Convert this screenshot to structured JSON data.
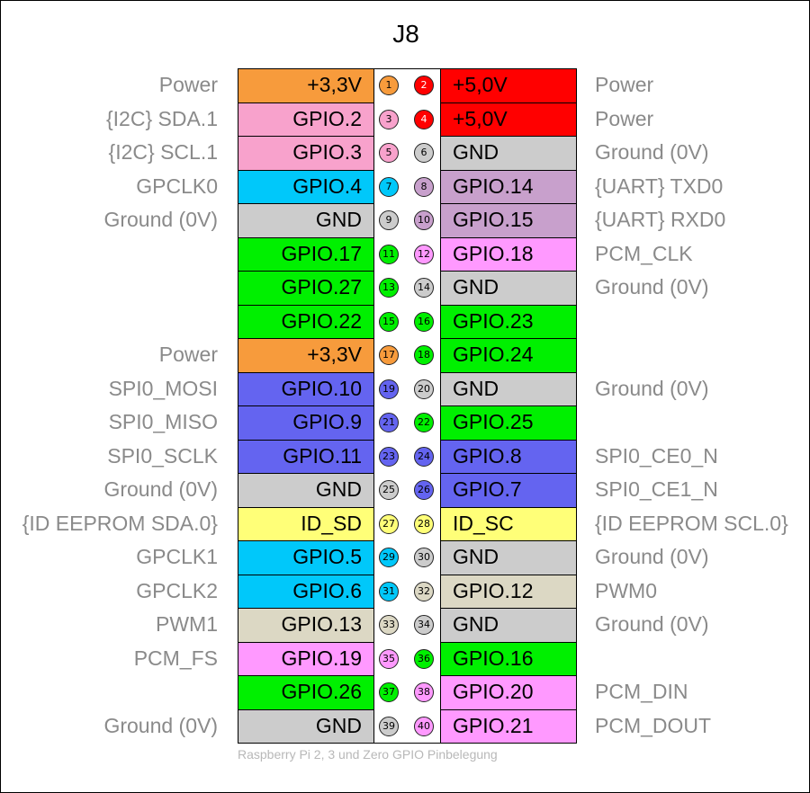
{
  "title": "J8",
  "caption": "Raspberry Pi 2, 3 und Zero GPIO Pinbelegung",
  "colors": {
    "orange": "#F79B3C",
    "red": "#FF0000",
    "pink": "#F8A2CC",
    "grey": "#CCCCCC",
    "cyan": "#00C8FA",
    "mauve": "#C8A0CC",
    "green": "#00F000",
    "magenta": "#FF99FF",
    "blue": "#6464F0",
    "yellow": "#FFFF78",
    "tan": "#DCD8C4"
  },
  "rows": [
    {
      "left_desc": "Power",
      "left_label": "+3,3V",
      "left_color": "orange",
      "left_pin": "1",
      "right_pin": "2",
      "right_label": "+5,0V",
      "right_color": "red",
      "right_desc": "Power"
    },
    {
      "left_desc": "{I2C} SDA.1",
      "left_label": "GPIO.2",
      "left_color": "pink",
      "left_pin": "3",
      "right_pin": "4",
      "right_label": "+5,0V",
      "right_color": "red",
      "right_desc": "Power"
    },
    {
      "left_desc": "{I2C} SCL.1",
      "left_label": "GPIO.3",
      "left_color": "pink",
      "left_pin": "5",
      "right_pin": "6",
      "right_label": "GND",
      "right_color": "grey",
      "right_desc": "Ground (0V)"
    },
    {
      "left_desc": "GPCLK0",
      "left_label": "GPIO.4",
      "left_color": "cyan",
      "left_pin": "7",
      "right_pin": "8",
      "right_label": "GPIO.14",
      "right_color": "mauve",
      "right_desc": "{UART} TXD0"
    },
    {
      "left_desc": "Ground (0V)",
      "left_label": "GND",
      "left_color": "grey",
      "left_pin": "9",
      "right_pin": "10",
      "right_label": "GPIO.15",
      "right_color": "mauve",
      "right_desc": "{UART} RXD0"
    },
    {
      "left_desc": "",
      "left_label": "GPIO.17",
      "left_color": "green",
      "left_pin": "11",
      "right_pin": "12",
      "right_label": "GPIO.18",
      "right_color": "magenta",
      "right_desc": "PCM_CLK"
    },
    {
      "left_desc": "",
      "left_label": "GPIO.27",
      "left_color": "green",
      "left_pin": "13",
      "right_pin": "14",
      "right_label": "GND",
      "right_color": "grey",
      "right_desc": "Ground (0V)"
    },
    {
      "left_desc": "",
      "left_label": "GPIO.22",
      "left_color": "green",
      "left_pin": "15",
      "right_pin": "16",
      "right_label": "GPIO.23",
      "right_color": "green",
      "right_desc": ""
    },
    {
      "left_desc": "Power",
      "left_label": "+3,3V",
      "left_color": "orange",
      "left_pin": "17",
      "right_pin": "18",
      "right_label": "GPIO.24",
      "right_color": "green",
      "right_desc": ""
    },
    {
      "left_desc": "SPI0_MOSI",
      "left_label": "GPIO.10",
      "left_color": "blue",
      "left_pin": "19",
      "right_pin": "20",
      "right_label": "GND",
      "right_color": "grey",
      "right_desc": "Ground (0V)"
    },
    {
      "left_desc": "SPI0_MISO",
      "left_label": "GPIO.9",
      "left_color": "blue",
      "left_pin": "21",
      "right_pin": "22",
      "right_label": "GPIO.25",
      "right_color": "green",
      "right_desc": ""
    },
    {
      "left_desc": "SPI0_SCLK",
      "left_label": "GPIO.11",
      "left_color": "blue",
      "left_pin": "23",
      "right_pin": "24",
      "right_label": "GPIO.8",
      "right_color": "blue",
      "right_desc": "SPI0_CE0_N"
    },
    {
      "left_desc": "Ground (0V)",
      "left_label": "GND",
      "left_color": "grey",
      "left_pin": "25",
      "right_pin": "26",
      "right_label": "GPIO.7",
      "right_color": "blue",
      "right_desc": "SPI0_CE1_N"
    },
    {
      "left_desc": "{ID EEPROM SDA.0}",
      "left_label": "ID_SD",
      "left_color": "yellow",
      "left_pin": "27",
      "right_pin": "28",
      "right_label": "ID_SC",
      "right_color": "yellow",
      "right_desc": "{ID EEPROM SCL.0}"
    },
    {
      "left_desc": "GPCLK1",
      "left_label": "GPIO.5",
      "left_color": "cyan",
      "left_pin": "29",
      "right_pin": "30",
      "right_label": "GND",
      "right_color": "grey",
      "right_desc": "Ground (0V)"
    },
    {
      "left_desc": "GPCLK2",
      "left_label": "GPIO.6",
      "left_color": "cyan",
      "left_pin": "31",
      "right_pin": "32",
      "right_label": "GPIO.12",
      "right_color": "tan",
      "right_desc": "PWM0"
    },
    {
      "left_desc": "PWM1",
      "left_label": "GPIO.13",
      "left_color": "tan",
      "left_pin": "33",
      "right_pin": "34",
      "right_label": "GND",
      "right_color": "grey",
      "right_desc": "Ground (0V)"
    },
    {
      "left_desc": "PCM_FS",
      "left_label": "GPIO.19",
      "left_color": "magenta",
      "left_pin": "35",
      "right_pin": "36",
      "right_label": "GPIO.16",
      "right_color": "green",
      "right_desc": ""
    },
    {
      "left_desc": "",
      "left_label": "GPIO.26",
      "left_color": "green",
      "left_pin": "37",
      "right_pin": "38",
      "right_label": "GPIO.20",
      "right_color": "magenta",
      "right_desc": "PCM_DIN"
    },
    {
      "left_desc": "Ground (0V)",
      "left_label": "GND",
      "left_color": "grey",
      "left_pin": "39",
      "right_pin": "40",
      "right_label": "GPIO.21",
      "right_color": "magenta",
      "right_desc": "PCM_DOUT"
    }
  ]
}
